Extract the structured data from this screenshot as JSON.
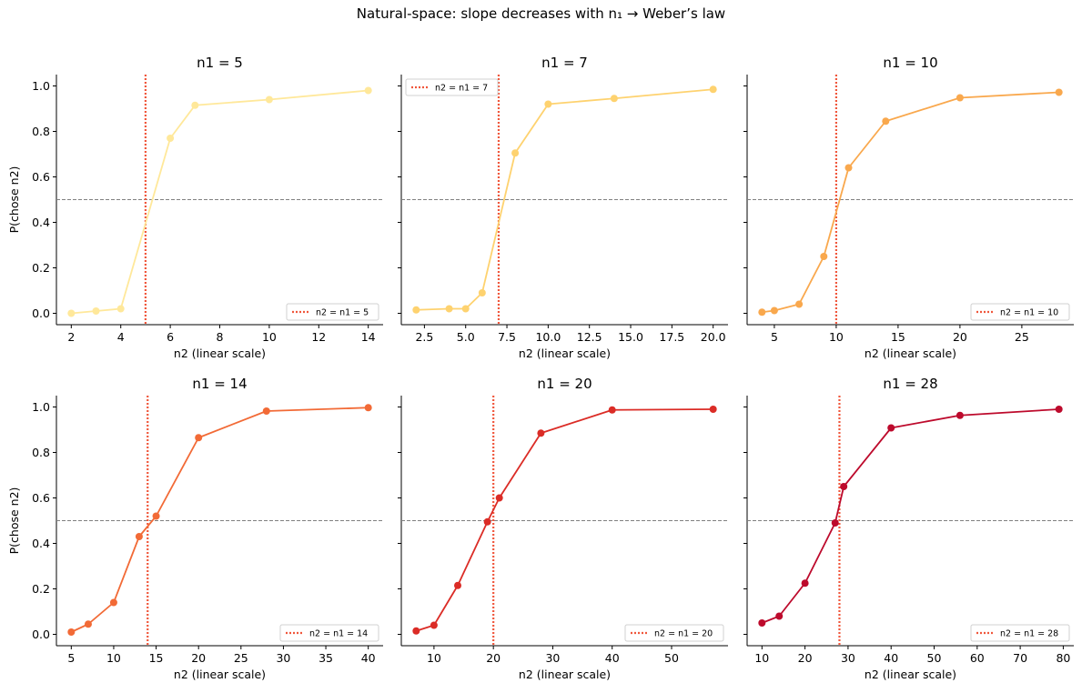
{
  "chart_data": {
    "suptitle": "Natural-space: slope decreases with n₁  →  Weber’s law",
    "shared_ylabel": "P(chose n2)",
    "ylim": [
      -0.05,
      1.05
    ],
    "yticks": [
      0.0,
      0.2,
      0.4,
      0.6,
      0.8,
      1.0
    ],
    "ytick_labels": [
      "0.0",
      "0.2",
      "0.4",
      "0.6",
      "0.8",
      "1.0"
    ],
    "reference_line": 0.5,
    "reference_color": "#808080",
    "vline_color": "#f0573c",
    "panels": [
      {
        "type": "line",
        "title": "n1 = 5",
        "n1": 5,
        "xlabel": "n2  (linear scale)",
        "color": "#ffe89a",
        "xlim": [
          1.4,
          14.6
        ],
        "xticks": [
          2,
          4,
          6,
          8,
          10,
          12,
          14
        ],
        "xtick_labels": [
          "2",
          "4",
          "6",
          "8",
          "10",
          "12",
          "14"
        ],
        "x": [
          2,
          3,
          4,
          6,
          7,
          10,
          14
        ],
        "y": [
          0.0,
          0.01,
          0.02,
          0.77,
          0.915,
          0.94,
          0.98
        ],
        "legend_label": "n2 = n1 = 5",
        "legend_position": "lower-right"
      },
      {
        "type": "line",
        "title": "n1 = 7",
        "n1": 7,
        "xlabel": "n2  (linear scale)",
        "color": "#fed26f",
        "xlim": [
          1.1,
          20.9
        ],
        "xticks": [
          2.5,
          5.0,
          7.5,
          10.0,
          12.5,
          15.0,
          17.5,
          20.0
        ],
        "xtick_labels": [
          "2.5",
          "5.0",
          "7.5",
          "10.0",
          "12.5",
          "15.0",
          "17.5",
          "20.0"
        ],
        "x": [
          2,
          4,
          5,
          6,
          8,
          10,
          14,
          20
        ],
        "y": [
          0.015,
          0.02,
          0.02,
          0.09,
          0.705,
          0.92,
          0.945,
          0.985
        ],
        "legend_label": "n2 = n1 = 7",
        "legend_position": "upper-left"
      },
      {
        "type": "line",
        "title": "n1 = 10",
        "n1": 10,
        "xlabel": "n2  (linear scale)",
        "color": "#f9a84d",
        "xlim": [
          2.8,
          29.2
        ],
        "xticks": [
          5,
          10,
          15,
          20,
          25
        ],
        "xtick_labels": [
          "5",
          "10",
          "15",
          "20",
          "25"
        ],
        "x": [
          4,
          5,
          7,
          9,
          11,
          14,
          20,
          28
        ],
        "y": [
          0.005,
          0.012,
          0.04,
          0.25,
          0.64,
          0.845,
          0.948,
          0.972
        ],
        "legend_label": "n2 = n1 = 10",
        "legend_position": "lower-right"
      },
      {
        "type": "line",
        "title": "n1 = 14",
        "n1": 14,
        "xlabel": "n2  (linear scale)",
        "color": "#f26a36",
        "xlim": [
          3.25,
          41.75
        ],
        "xticks": [
          5,
          10,
          15,
          20,
          25,
          30,
          35,
          40
        ],
        "xtick_labels": [
          "5",
          "10",
          "15",
          "20",
          "25",
          "30",
          "35",
          "40"
        ],
        "x": [
          5,
          7,
          10,
          13,
          15,
          20,
          28,
          40
        ],
        "y": [
          0.01,
          0.045,
          0.14,
          0.43,
          0.52,
          0.865,
          0.982,
          0.997
        ],
        "legend_label": "n2 = n1 = 14",
        "legend_position": "lower-right"
      },
      {
        "type": "line",
        "title": "n1 = 20",
        "n1": 20,
        "xlabel": "n2  (linear scale)",
        "color": "#db2c26",
        "xlim": [
          4.5,
          59.5
        ],
        "xticks": [
          10,
          20,
          30,
          40,
          50
        ],
        "xtick_labels": [
          "10",
          "20",
          "30",
          "40",
          "50"
        ],
        "x": [
          7,
          10,
          14,
          19,
          21,
          28,
          40,
          57
        ],
        "y": [
          0.015,
          0.04,
          0.215,
          0.495,
          0.6,
          0.885,
          0.987,
          0.99
        ],
        "legend_label": "n2 = n1 = 20",
        "legend_position": "lower-right"
      },
      {
        "type": "line",
        "title": "n1 = 28",
        "n1": 28,
        "xlabel": "n2  (linear scale)",
        "color": "#bd0a2c",
        "xlim": [
          6.55,
          82.45
        ],
        "xticks": [
          10,
          20,
          30,
          40,
          50,
          60,
          70,
          80
        ],
        "xtick_labels": [
          "10",
          "20",
          "30",
          "40",
          "50",
          "60",
          "70",
          "80"
        ],
        "x": [
          10,
          14,
          20,
          27,
          29,
          40,
          56,
          79
        ],
        "y": [
          0.05,
          0.08,
          0.225,
          0.49,
          0.65,
          0.908,
          0.963,
          0.99
        ],
        "legend_label": "n2 = n1 = 28",
        "legend_position": "lower-right"
      }
    ]
  }
}
